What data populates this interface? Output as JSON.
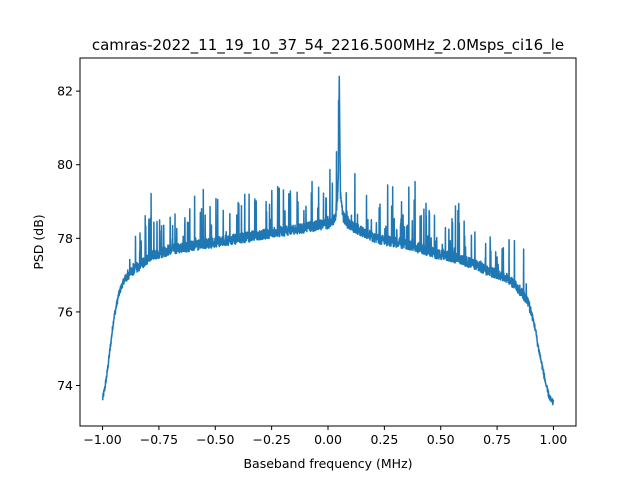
{
  "chart_data": {
    "type": "line",
    "title": "camras-2022_11_19_10_37_54_2216.500MHz_2.0Msps_ci16_le",
    "xlabel": "Baseband frequency (MHz)",
    "ylabel": "PSD (dB)",
    "xlim": [
      -1.1,
      1.1
    ],
    "ylim": [
      72.9,
      82.9
    ],
    "xticks": [
      -1.0,
      -0.75,
      -0.5,
      -0.25,
      0.0,
      0.25,
      0.5,
      0.75,
      1.0
    ],
    "xtick_labels": [
      "−1.00",
      "−0.75",
      "−0.50",
      "−0.25",
      "0.00",
      "0.25",
      "0.50",
      "0.75",
      "1.00"
    ],
    "yticks": [
      74,
      76,
      78,
      80,
      82
    ],
    "ytick_labels": [
      "74",
      "76",
      "78",
      "80",
      "82"
    ],
    "grid": false,
    "color": "#1f77b4",
    "series": [
      {
        "x": [
          -1.0,
          -0.99,
          -0.98,
          -0.97,
          -0.96,
          -0.95,
          -0.94,
          -0.93,
          -0.92,
          -0.9,
          -0.88,
          -0.86,
          -0.84,
          -0.82,
          -0.8,
          -0.78,
          -0.75,
          -0.72,
          -0.7,
          -0.65,
          -0.6,
          -0.55,
          -0.5,
          -0.45,
          -0.4,
          -0.35,
          -0.3,
          -0.25,
          -0.2,
          -0.15,
          -0.1,
          -0.05,
          0.0,
          0.02,
          0.035,
          0.045,
          0.05,
          0.055,
          0.065,
          0.08,
          0.1,
          0.15,
          0.2,
          0.25,
          0.3,
          0.35,
          0.4,
          0.45,
          0.5,
          0.55,
          0.6,
          0.65,
          0.7,
          0.75,
          0.8,
          0.82,
          0.84,
          0.86,
          0.88,
          0.9,
          0.92,
          0.93,
          0.94,
          0.95,
          0.96,
          0.97,
          0.98,
          0.99,
          1.0
        ],
        "y": [
          73.6,
          73.9,
          74.3,
          74.8,
          75.3,
          75.8,
          76.1,
          76.4,
          76.6,
          76.9,
          77.0,
          77.1,
          77.2,
          77.3,
          77.4,
          77.5,
          77.55,
          77.6,
          77.65,
          77.7,
          77.75,
          77.8,
          77.85,
          77.9,
          77.95,
          78.0,
          78.05,
          78.1,
          78.15,
          78.2,
          78.25,
          78.3,
          78.35,
          78.4,
          78.6,
          79.2,
          82.4,
          79.2,
          78.6,
          78.4,
          78.3,
          78.15,
          78.0,
          77.9,
          77.85,
          77.8,
          77.7,
          77.6,
          77.5,
          77.45,
          77.35,
          77.25,
          77.1,
          77.0,
          76.85,
          76.75,
          76.6,
          76.5,
          76.3,
          76.0,
          75.5,
          75.1,
          74.8,
          74.5,
          74.2,
          73.9,
          73.7,
          73.55,
          73.5
        ]
      }
    ]
  }
}
